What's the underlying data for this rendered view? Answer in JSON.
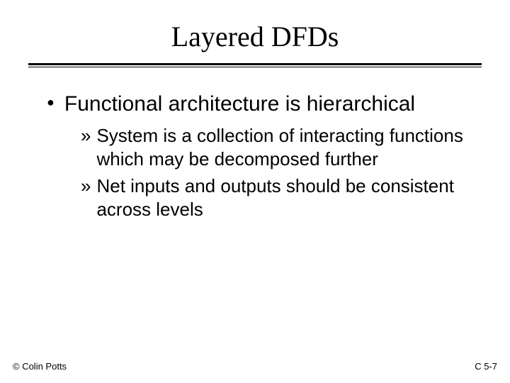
{
  "title": "Layered DFDs",
  "main": {
    "heading": "Functional architecture is hierarchical",
    "sub": [
      "System is a collection of interacting functions which may be decomposed further",
      "Net inputs and outputs should be consistent across levels"
    ]
  },
  "footer": {
    "left": "© Colin Potts",
    "right": "C 5-7"
  },
  "style": {
    "bullet_l1": "●",
    "bullet_l2": "»"
  }
}
